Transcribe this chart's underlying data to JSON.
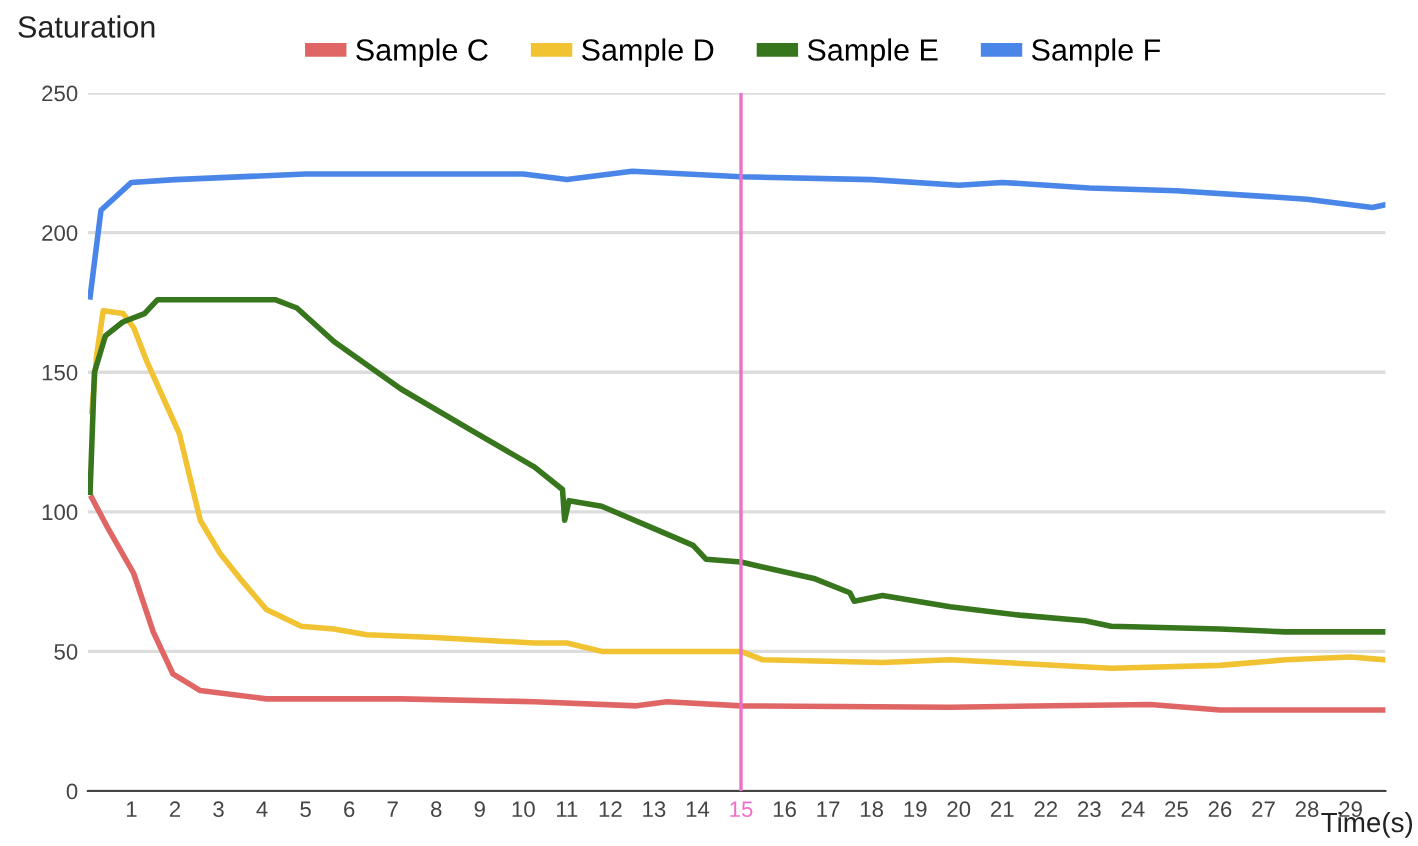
{
  "chart_data": {
    "type": "line",
    "ylabel": "Saturation",
    "xlabel": "Time(s)",
    "xlim": [
      0,
      29.8
    ],
    "ylim": [
      0,
      250
    ],
    "xticks": [
      1,
      2,
      3,
      4,
      5,
      6,
      7,
      8,
      9,
      10,
      11,
      12,
      13,
      14,
      15,
      16,
      17,
      18,
      19,
      20,
      21,
      22,
      23,
      24,
      25,
      26,
      27,
      28,
      29
    ],
    "yticks": [
      0,
      50,
      100,
      150,
      200,
      250
    ],
    "grid": "y",
    "legend": "top",
    "marker": "none",
    "line_style": "solid",
    "ref_lines": [
      {
        "axis": "x",
        "value": 15,
        "color": "#ee6fc8"
      }
    ],
    "series": [
      {
        "name": "Sample C",
        "color": "#e06666",
        "x": [
          0.09,
          0.43,
          1.05,
          1.5,
          1.95,
          2.58,
          4.1,
          7.2,
          10.26,
          12.6,
          13.3,
          15,
          19.8,
          24.4,
          26,
          29.8
        ],
        "values": [
          105,
          95,
          78,
          57,
          42,
          36,
          33,
          33,
          32,
          30.5,
          32,
          30.5,
          30,
          31,
          29,
          29
        ]
      },
      {
        "name": "Sample D",
        "color": "#f1c232",
        "x": [
          0.09,
          0.2,
          0.35,
          0.81,
          1.05,
          1.35,
          1.81,
          2.1,
          2.58,
          3.04,
          3.5,
          4.1,
          4.9,
          5.65,
          6.4,
          7.96,
          10.26,
          11,
          11.8,
          13.3,
          15,
          15.5,
          18.25,
          19.8,
          23.5,
          26,
          27.5,
          29,
          29.8
        ],
        "values": [
          136,
          156,
          172,
          171,
          166,
          154,
          138,
          128,
          97,
          85,
          76,
          65,
          59,
          58,
          56,
          55,
          53,
          53,
          50,
          50,
          50,
          47,
          46,
          47,
          44,
          45,
          47,
          48,
          47
        ]
      },
      {
        "name": "Sample E",
        "color": "#38761d",
        "x": [
          0.05,
          0.15,
          0.4,
          0.8,
          1.3,
          1.6,
          2.5,
          4.3,
          4.8,
          5.65,
          7.19,
          8.72,
          10.26,
          10.9,
          10.95,
          11.05,
          11.8,
          13.3,
          13.9,
          14.2,
          15,
          16.7,
          17.5,
          17.6,
          18.25,
          19.8,
          21.4,
          22.9,
          23.5,
          26,
          27.5,
          29.8
        ],
        "values": [
          107,
          150,
          163,
          168,
          171,
          176,
          176,
          176,
          173,
          161,
          144,
          130,
          116,
          108,
          97,
          104,
          102,
          92,
          88,
          83,
          82,
          76,
          71,
          68,
          70,
          66,
          63,
          61,
          59,
          58,
          57,
          57
        ]
      },
      {
        "name": "Sample F",
        "color": "#4a86e8",
        "x": [
          0.05,
          0.3,
          1,
          2,
          5,
          10,
          11,
          12.5,
          15,
          18,
          20,
          21,
          23,
          25,
          27,
          28,
          29.5,
          29.8
        ],
        "values": [
          177,
          208,
          218,
          219,
          221,
          221,
          219,
          222,
          220,
          219,
          217,
          218,
          216,
          215,
          213,
          212,
          209,
          210
        ]
      }
    ]
  }
}
